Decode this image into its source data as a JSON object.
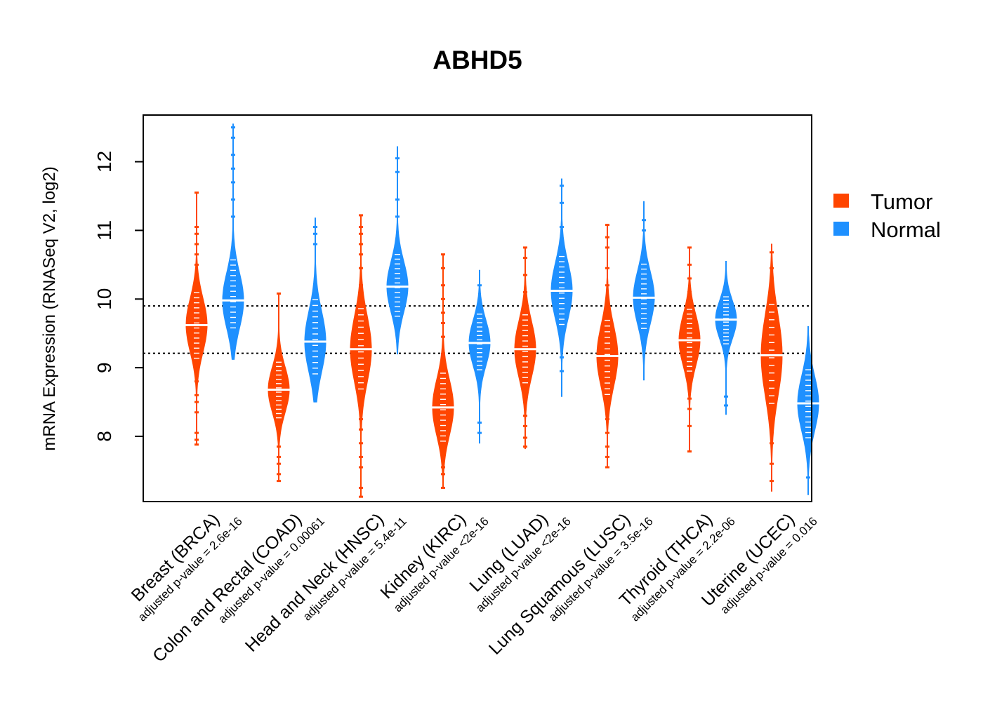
{
  "chart_data": {
    "type": "beanplot",
    "title": "ABHD5",
    "ylabel": "mRNA Expression (RNASeq V2, log2)",
    "xlabel": "",
    "ylim": [
      7.05,
      12.68
    ],
    "yticks": [
      8,
      9,
      10,
      11,
      12
    ],
    "grid": false,
    "reference_lines": [
      9.21,
      9.9
    ],
    "legend": {
      "position": "right",
      "entries": [
        {
          "label": "Tumor",
          "color": "#FF4500"
        },
        {
          "label": "Normal",
          "color": "#1E90FF"
        }
      ]
    },
    "colors": {
      "tumor": "#FF4500",
      "normal": "#1E90FF"
    },
    "categories": [
      {
        "label": "Breast (BRCA)",
        "pvalue": "adjusted p-value = 2.6e-16",
        "tumor": {
          "median": 9.62,
          "min": 7.88,
          "max": 11.55,
          "q1": 9.35,
          "q3": 9.88,
          "outliers": [
            7.88,
            7.95,
            8.05,
            8.35,
            8.5,
            8.6,
            8.8,
            10.3,
            10.5,
            10.65,
            10.8,
            10.95,
            11.05,
            11.55
          ]
        },
        "normal": {
          "median": 9.98,
          "min": 9.12,
          "max": 12.55,
          "q1": 9.8,
          "q3": 10.35,
          "outliers": [
            11.2,
            11.45,
            11.7,
            11.9,
            12.1,
            12.35,
            12.5
          ]
        }
      },
      {
        "label": "Colon and Rectal (COAD)",
        "pvalue": "adjusted p-value = 0.00061",
        "tumor": {
          "median": 8.68,
          "min": 7.35,
          "max": 10.08,
          "q1": 8.45,
          "q3": 8.9,
          "outliers": [
            7.35,
            7.45,
            7.6,
            7.7,
            7.85,
            10.08
          ]
        },
        "normal": {
          "median": 9.38,
          "min": 8.5,
          "max": 11.18,
          "q1": 9.15,
          "q3": 9.75,
          "outliers": [
            10.8,
            10.95,
            11.05
          ]
        }
      },
      {
        "label": "Head and Neck (HNSC)",
        "pvalue": "adjusted p-value = 5.4e-11",
        "tumor": {
          "median": 9.27,
          "min": 7.12,
          "max": 11.22,
          "q1": 8.95,
          "q3": 9.6,
          "outliers": [
            7.12,
            7.25,
            7.55,
            7.7,
            7.9,
            8.1,
            8.25,
            10.2,
            10.45,
            10.65,
            10.8,
            10.95,
            11.05,
            11.22
          ]
        },
        "normal": {
          "median": 10.18,
          "min": 9.2,
          "max": 12.22,
          "q1": 9.95,
          "q3": 10.45,
          "outliers": [
            11.2,
            11.45,
            11.85,
            12.05
          ]
        }
      },
      {
        "label": "Kidney (KIRC)",
        "pvalue": "adjusted p-value <2e-16",
        "tumor": {
          "median": 8.42,
          "min": 7.25,
          "max": 10.65,
          "q1": 8.15,
          "q3": 8.7,
          "outliers": [
            7.25,
            7.45,
            7.55,
            9.2,
            9.45,
            9.65,
            9.8,
            10.0,
            10.2,
            10.45,
            10.65
          ]
        },
        "normal": {
          "median": 9.36,
          "min": 7.9,
          "max": 10.42,
          "q1": 9.15,
          "q3": 9.6,
          "outliers": [
            8.05,
            8.2,
            10.2
          ]
        }
      },
      {
        "label": "Lung (LUAD)",
        "pvalue": "adjusted p-value <2e-16",
        "tumor": {
          "median": 9.27,
          "min": 7.82,
          "max": 10.75,
          "q1": 9.0,
          "q3": 9.55,
          "outliers": [
            7.85,
            7.98,
            8.15,
            8.3,
            10.1,
            10.35,
            10.6,
            10.75
          ]
        },
        "normal": {
          "median": 10.12,
          "min": 8.58,
          "max": 11.75,
          "q1": 9.85,
          "q3": 10.4,
          "outliers": [
            8.95,
            9.15,
            11.05,
            11.4,
            11.65
          ]
        }
      },
      {
        "label": "Lung Squamous (LUSC)",
        "pvalue": "adjusted p-value = 3.5e-16",
        "tumor": {
          "median": 9.17,
          "min": 7.55,
          "max": 11.08,
          "q1": 8.85,
          "q3": 9.45,
          "outliers": [
            7.55,
            7.7,
            7.85,
            8.05,
            8.25,
            10.2,
            10.45,
            10.75,
            10.9,
            11.08
          ]
        },
        "normal": {
          "median": 10.02,
          "min": 8.82,
          "max": 11.42,
          "q1": 9.78,
          "q3": 10.3,
          "outliers": [
            11.0,
            11.15
          ]
        }
      },
      {
        "label": "Thyroid (THCA)",
        "pvalue": "adjusted p-value = 2.2e-06",
        "tumor": {
          "median": 9.4,
          "min": 7.78,
          "max": 10.75,
          "q1": 9.15,
          "q3": 9.65,
          "outliers": [
            7.78,
            8.15,
            8.4,
            8.55,
            10.1,
            10.3,
            10.5,
            10.75
          ]
        },
        "normal": {
          "median": 9.7,
          "min": 8.32,
          "max": 10.55,
          "q1": 9.5,
          "q3": 9.88,
          "outliers": [
            8.45,
            8.58
          ]
        }
      },
      {
        "label": "Uterine (UCEC)",
        "pvalue": "adjusted p-value = 0.016",
        "tumor": {
          "median": 9.18,
          "min": 7.2,
          "max": 10.8,
          "q1": 8.8,
          "q3": 9.6,
          "outliers": [
            7.35,
            7.6,
            7.9,
            8.1,
            10.45,
            10.68
          ]
        },
        "normal": {
          "median": 8.48,
          "min": 7.15,
          "max": 9.6,
          "q1": 8.2,
          "q3": 8.75,
          "outliers": [
            7.4
          ]
        }
      }
    ]
  }
}
